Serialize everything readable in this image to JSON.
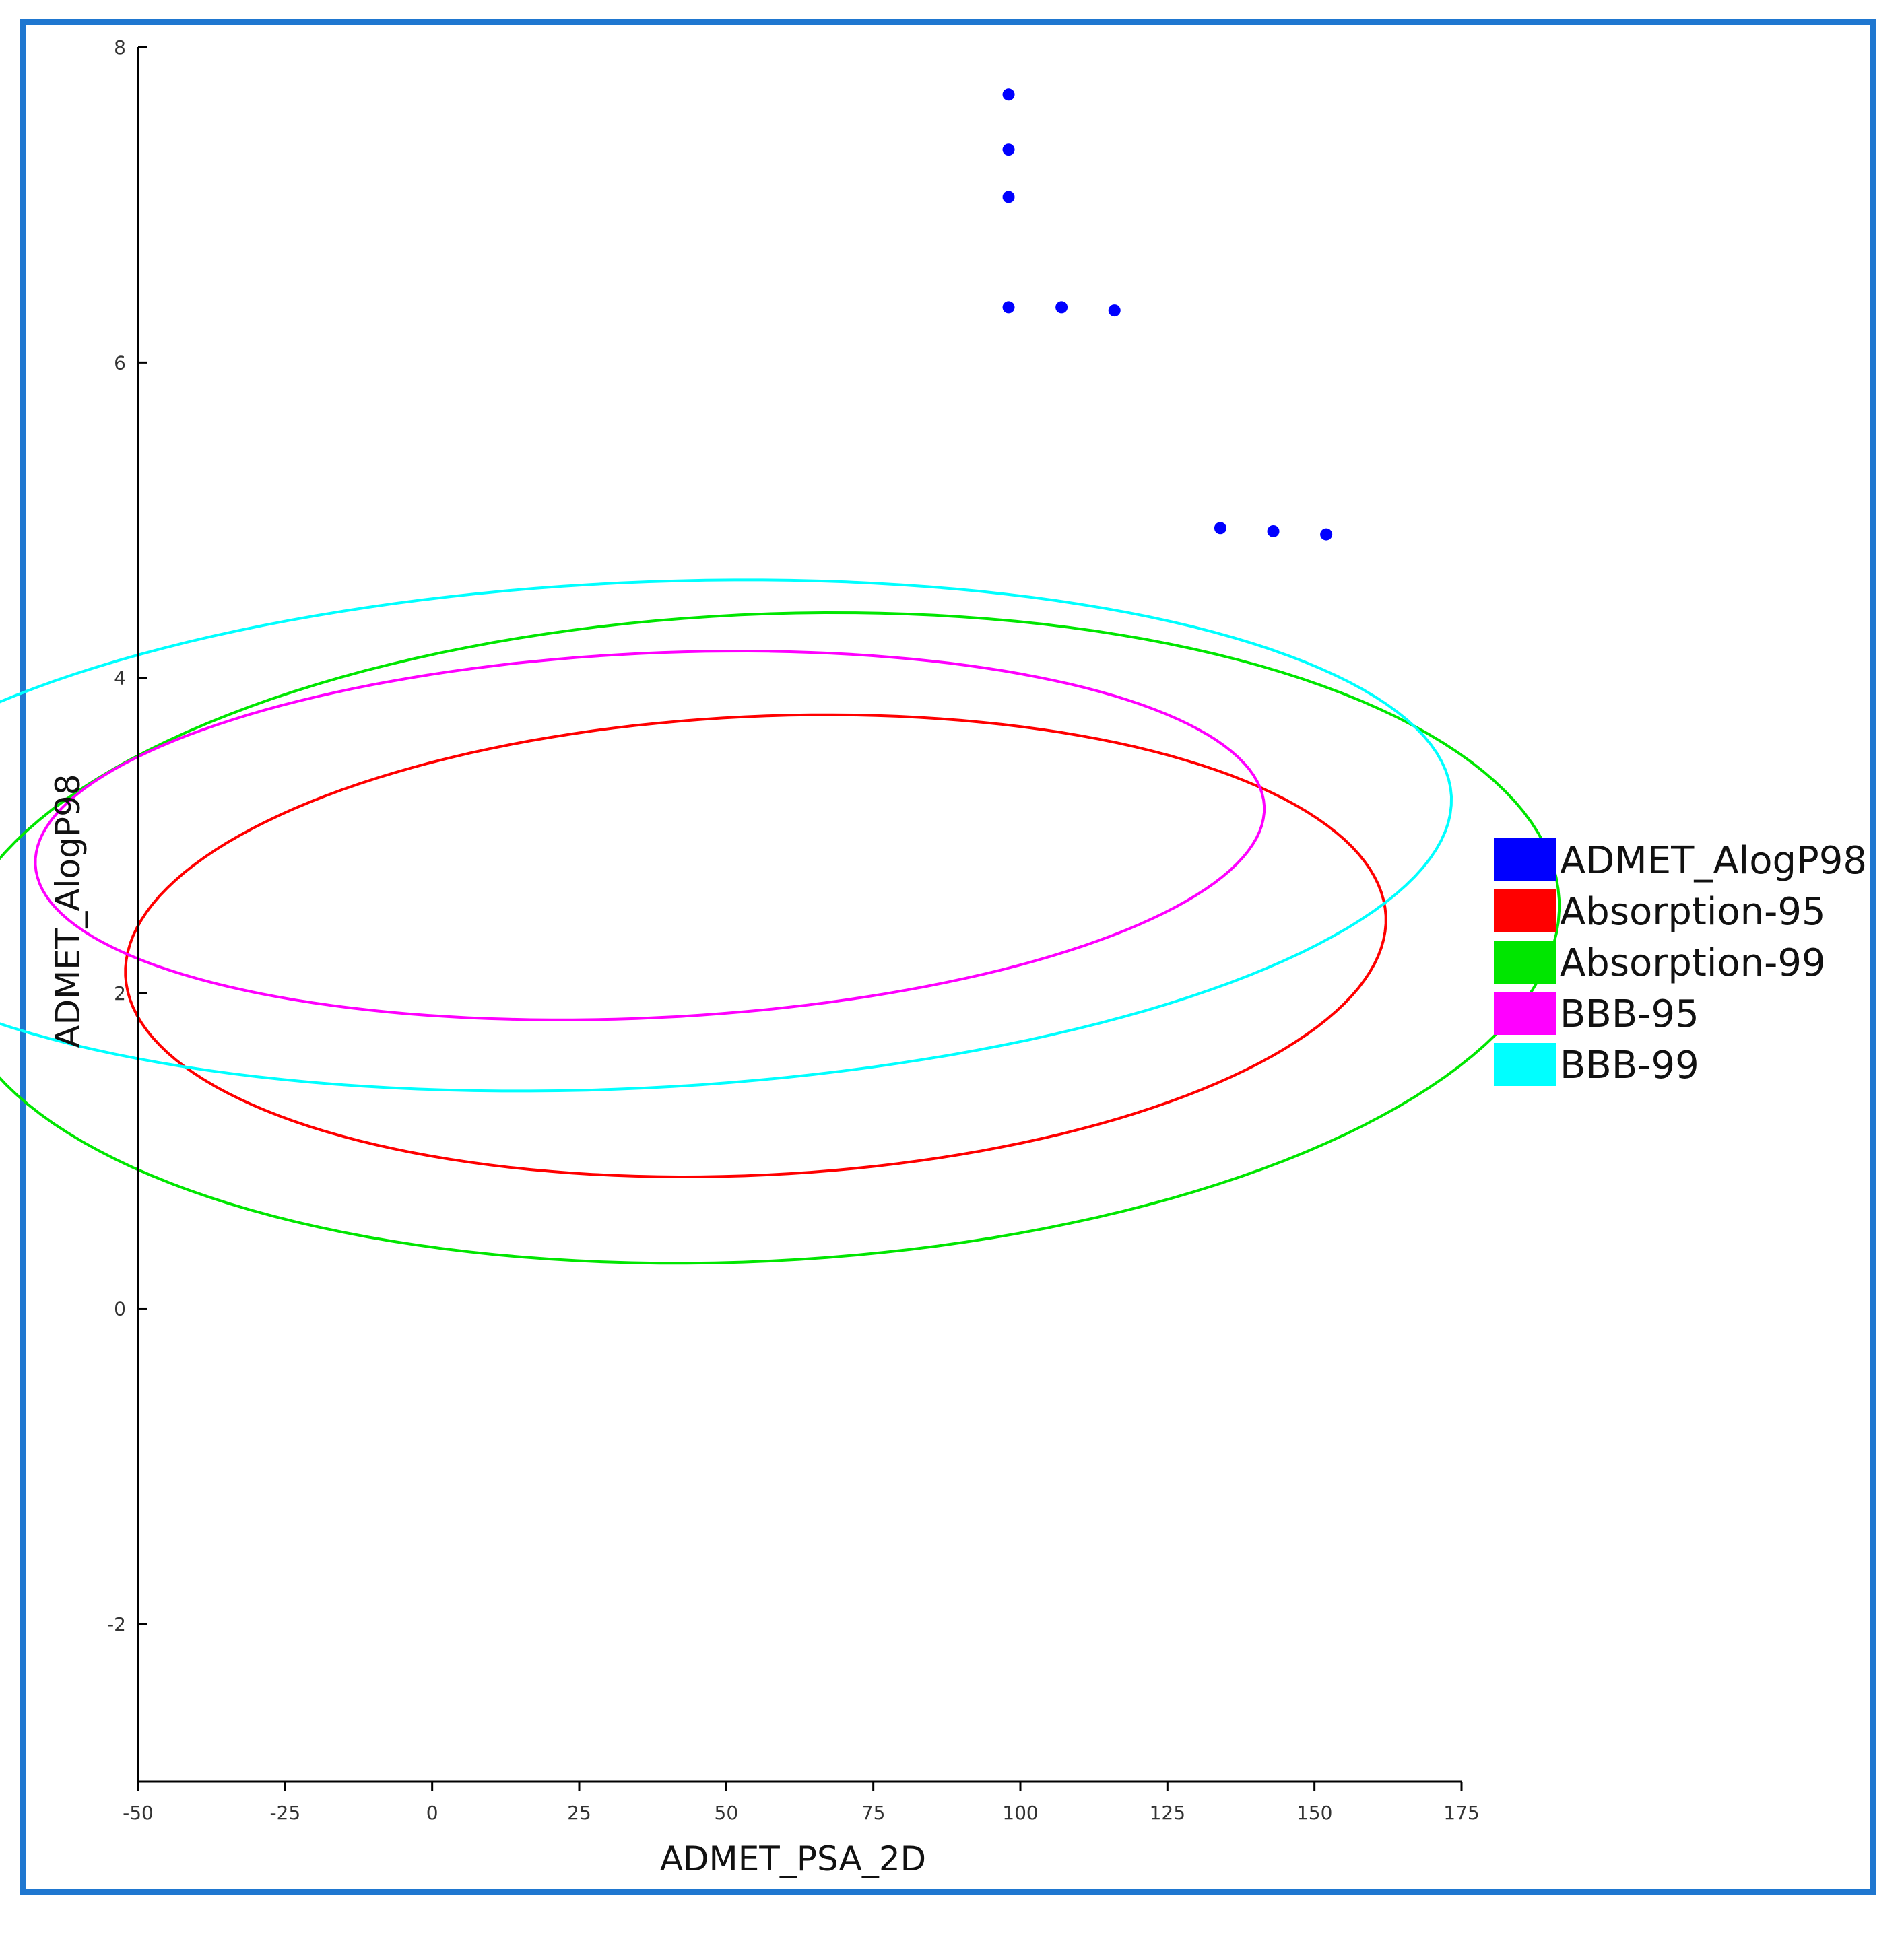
{
  "chart_data": {
    "type": "scatter",
    "xlabel": "ADMET_PSA_2D",
    "ylabel": "ADMET_AlogP98",
    "xlim": [
      -50,
      175
    ],
    "ylim": [
      -3,
      8
    ],
    "x_ticks": [
      -50,
      -25,
      0,
      25,
      50,
      75,
      100,
      125,
      150,
      175
    ],
    "y_ticks": [
      -2,
      0,
      2,
      4,
      6,
      8
    ],
    "grid": false,
    "legend_position": "right",
    "points": {
      "name": "ADMET_AlogP98",
      "color": "#0000ff",
      "x": [
        98,
        98,
        98,
        98,
        107,
        116,
        134,
        143,
        152
      ],
      "y": [
        7.7,
        7.35,
        7.05,
        6.35,
        6.35,
        6.33,
        4.95,
        4.93,
        4.91
      ]
    },
    "ellipses": [
      {
        "name": "Absorption-95",
        "color": "#ff0000",
        "cx": 55,
        "cy": 2.3,
        "rx": 39,
        "ry": 4.0,
        "angle_deg": -38
      },
      {
        "name": "Absorption-99",
        "color": "#00e600",
        "cx": 55,
        "cy": 2.35,
        "rx": 55,
        "ry": 5.1,
        "angle_deg": -38
      },
      {
        "name": "BBB-95",
        "color": "#ff00ff",
        "cx": 37,
        "cy": 3.0,
        "rx": 31,
        "ry": 3.9,
        "angle_deg": -38
      },
      {
        "name": "BBB-99",
        "color": "#00ffff",
        "cx": 34,
        "cy": 3.0,
        "rx": 43,
        "ry": 5.2,
        "angle_deg": -38
      }
    ],
    "legend": [
      {
        "label": "ADMET_AlogP98",
        "color": "#0000ff"
      },
      {
        "label": "Absorption-95",
        "color": "#ff0000"
      },
      {
        "label": "Absorption-99",
        "color": "#00e600"
      },
      {
        "label": "BBB-95",
        "color": "#ff00ff"
      },
      {
        "label": "BBB-99",
        "color": "#00ffff"
      }
    ]
  }
}
